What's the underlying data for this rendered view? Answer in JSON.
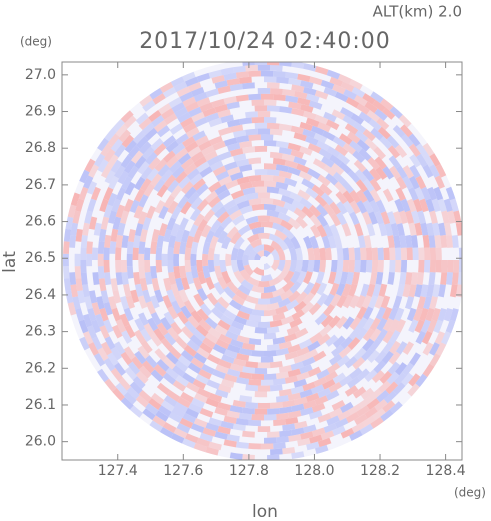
{
  "chart_data": {
    "type": "radar-ppi",
    "title": "2017/10/24 02:40:00",
    "subtitle": "ALT(km) 2.0",
    "x_label": "lon",
    "y_label": "lat",
    "x_unit": "(deg)",
    "y_unit": "(deg)",
    "xlim": [
      127.23,
      128.45
    ],
    "ylim": [
      25.95,
      27.035
    ],
    "xticks": [
      127.4,
      127.6,
      127.8,
      {
        "value": 128.0,
        "label": "128.0"
      },
      128.2,
      128.4
    ],
    "yticks": [
      {
        "value": 26.0,
        "label": "26.0"
      },
      26.1,
      26.2,
      26.3,
      26.4,
      26.5,
      26.6,
      26.7,
      26.8,
      26.9,
      {
        "value": 27.0,
        "label": "27.0"
      }
    ],
    "colors": [
      "#f7b5b5",
      "#b8bff7"
    ]
  }
}
